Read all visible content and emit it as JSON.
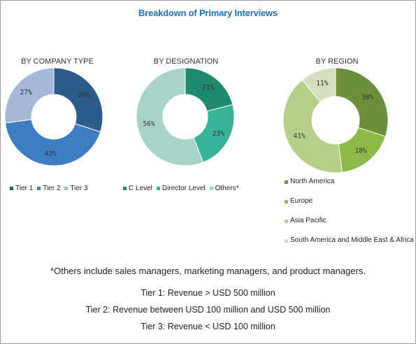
{
  "title": "Breakdown of Primary Interviews",
  "chart_data": [
    {
      "type": "pie",
      "title": "BY COMPANY TYPE",
      "categories": [
        "Tier 1",
        "Tier 2",
        "Tier 3"
      ],
      "values": [
        30,
        43,
        27
      ],
      "labels": [
        "30%",
        "43%",
        "27%"
      ],
      "colors": [
        "#2d5b8a",
        "#3d7ec2",
        "#a4b7d6"
      ],
      "legend": "bottom"
    },
    {
      "type": "pie",
      "title": "BY DESIGNATION",
      "categories": [
        "C Level",
        "Director Level",
        "Others*"
      ],
      "values": [
        21,
        23,
        56
      ],
      "labels": [
        "21%",
        "23%",
        "56%"
      ],
      "colors": [
        "#1f8a6e",
        "#37b39a",
        "#a8d3c8"
      ],
      "legend": "bottom"
    },
    {
      "type": "pie",
      "title": "BY REGION",
      "categories": [
        "North America",
        "Europe",
        "Asia Pacific",
        "South America and Middle East & Africa"
      ],
      "values": [
        30,
        18,
        41,
        11
      ],
      "labels": [
        "30%",
        "18%",
        "41%",
        "11%"
      ],
      "colors": [
        "#6e8f3a",
        "#8db84a",
        "#b5cf8a",
        "#d3dfbf"
      ],
      "legend": "bottom"
    }
  ],
  "notes": {
    "others": "*Others include sales managers, marketing managers, and product managers.",
    "tier1": "Tier 1: Revenue > USD 500 million",
    "tier2": "Tier 2: Revenue between USD 100 million and USD 500 million",
    "tier3": "Tier 3: Revenue < USD 100 million"
  }
}
